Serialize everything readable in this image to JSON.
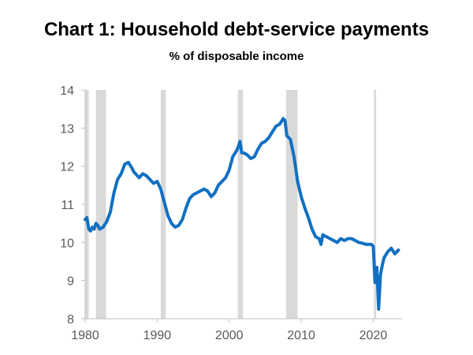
{
  "header": {
    "title": "Chart 1: Household debt-service payments",
    "subtitle": "% of disposable income"
  },
  "chart_data": {
    "type": "line",
    "title": "Chart 1: Household debt-service payments",
    "subtitle": "% of disposable income",
    "xlabel": "",
    "ylabel": "",
    "xlim": [
      1980,
      2024
    ],
    "ylim": [
      8,
      14
    ],
    "x_ticks": [
      1980,
      1990,
      2000,
      2010,
      2020
    ],
    "y_ticks": [
      8,
      9,
      10,
      11,
      12,
      13,
      14
    ],
    "grid": false,
    "legend": "none",
    "series_color": "#1170C2",
    "recession_color": "#D9D9D9",
    "recessions": [
      {
        "start": 1980.0,
        "end": 1980.5
      },
      {
        "start": 1981.5,
        "end": 1982.9
      },
      {
        "start": 1990.5,
        "end": 1991.2
      },
      {
        "start": 2001.2,
        "end": 2001.9
      },
      {
        "start": 2007.9,
        "end": 2009.5
      },
      {
        "start": 2020.1,
        "end": 2020.4
      }
    ],
    "series": [
      {
        "x": [
          1980.0,
          1980.25,
          1980.5,
          1980.75,
          1981.0,
          1981.25,
          1981.5,
          1981.75,
          1982.0,
          1982.5,
          1983.0,
          1983.5,
          1984.0,
          1984.5,
          1985.0,
          1985.5,
          1986.0,
          1986.5,
          1986.75,
          1987.0,
          1987.5,
          1988.0,
          1988.5,
          1989.0,
          1989.5,
          1990.0,
          1990.5,
          1991.0,
          1991.5,
          1992.0,
          1992.5,
          1993.0,
          1993.5,
          1994.0,
          1994.5,
          1995.0,
          1995.5,
          1996.0,
          1996.5,
          1997.0,
          1997.5,
          1998.0,
          1998.5,
          1999.0,
          1999.5,
          2000.0,
          2000.5,
          2001.0,
          2001.25,
          2001.5,
          2001.75,
          2002.0,
          2002.5,
          2003.0,
          2003.5,
          2004.0,
          2004.5,
          2005.0,
          2005.5,
          2006.0,
          2006.5,
          2007.0,
          2007.5,
          2007.75,
          2008.0,
          2008.5,
          2009.0,
          2009.5,
          2010.0,
          2010.5,
          2011.0,
          2011.5,
          2012.0,
          2012.5,
          2012.75,
          2013.0,
          2013.5,
          2014.0,
          2014.5,
          2015.0,
          2015.5,
          2016.0,
          2016.5,
          2017.0,
          2017.5,
          2018.0,
          2018.5,
          2019.0,
          2019.5,
          2019.75,
          2020.0,
          2020.25,
          2020.5,
          2020.75,
          2021.0,
          2021.25,
          2021.5,
          2022.0,
          2022.5,
          2023.0,
          2023.25,
          2023.5
        ],
        "y": [
          10.6,
          10.65,
          10.35,
          10.3,
          10.4,
          10.35,
          10.5,
          10.45,
          10.35,
          10.4,
          10.55,
          10.8,
          11.3,
          11.65,
          11.8,
          12.05,
          12.1,
          11.95,
          11.85,
          11.8,
          11.7,
          11.8,
          11.75,
          11.65,
          11.55,
          11.6,
          11.4,
          11.05,
          10.7,
          10.5,
          10.4,
          10.45,
          10.6,
          10.9,
          11.15,
          11.25,
          11.3,
          11.35,
          11.4,
          11.35,
          11.2,
          11.3,
          11.5,
          11.6,
          11.7,
          11.9,
          12.25,
          12.4,
          12.5,
          12.65,
          12.35,
          12.35,
          12.3,
          12.2,
          12.25,
          12.45,
          12.6,
          12.65,
          12.75,
          12.9,
          13.05,
          13.1,
          13.25,
          13.2,
          12.8,
          12.7,
          12.25,
          11.6,
          11.2,
          10.9,
          10.65,
          10.35,
          10.15,
          10.1,
          9.95,
          10.2,
          10.15,
          10.1,
          10.05,
          10.0,
          10.1,
          10.05,
          10.1,
          10.1,
          10.05,
          10.0,
          9.98,
          9.95,
          9.95,
          9.95,
          9.9,
          8.95,
          9.35,
          8.25,
          9.15,
          9.4,
          9.6,
          9.75,
          9.85,
          9.7,
          9.75,
          9.8
        ]
      }
    ]
  }
}
